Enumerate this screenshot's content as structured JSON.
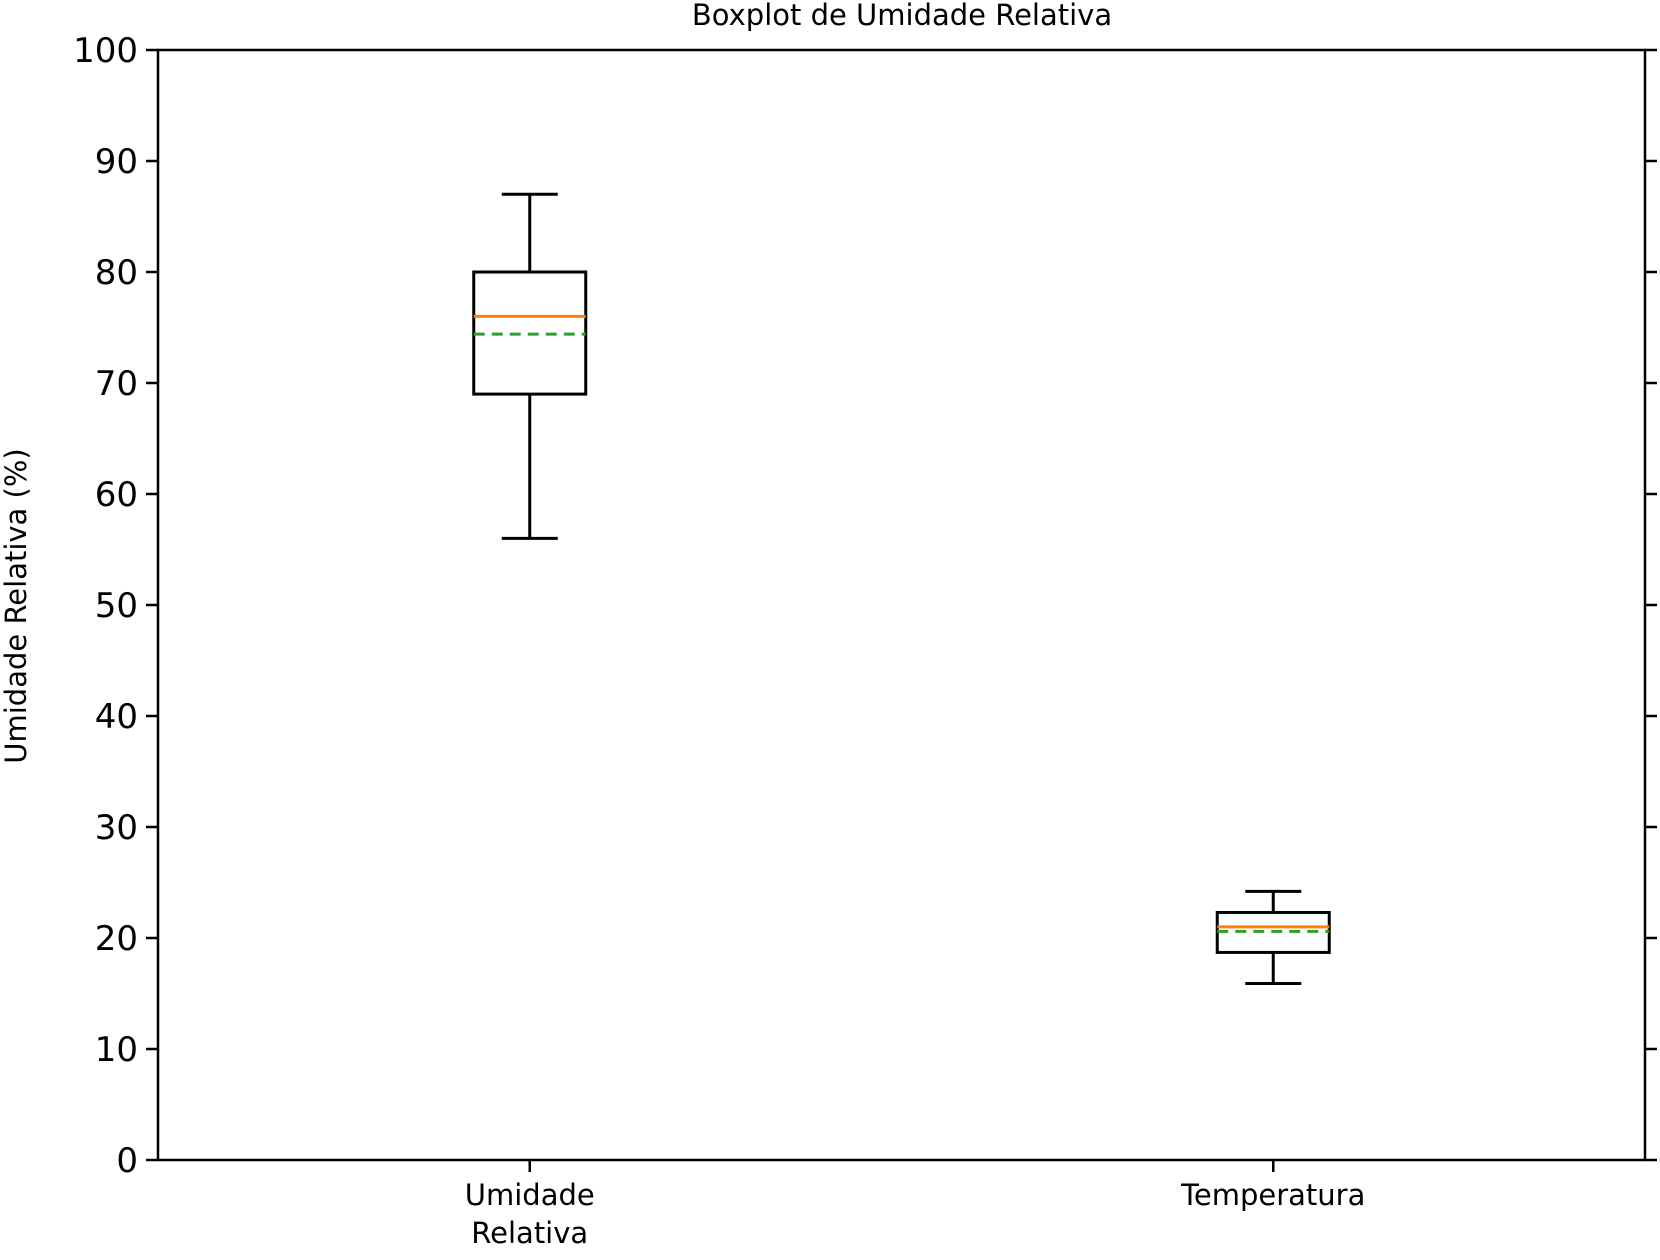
{
  "chart_data": {
    "type": "boxplot",
    "title": "Boxplot de Umidade Relativa",
    "xlabel": "",
    "ylabel": "Umidade Relativa (%)",
    "ylim": [
      0,
      100
    ],
    "yticks": [
      0,
      10,
      20,
      30,
      40,
      50,
      60,
      70,
      80,
      90,
      100
    ],
    "grid": false,
    "categories": [
      {
        "label_lines": [
          "Umidade",
          "Relativa"
        ]
      },
      {
        "label_lines": [
          "Temperatura"
        ]
      }
    ],
    "boxes": [
      {
        "whisker_low": 56,
        "q1": 69,
        "median": 76,
        "mean": 74.4,
        "q3": 80,
        "whisker_high": 87
      },
      {
        "whisker_low": 15.9,
        "q1": 18.7,
        "median": 21.0,
        "mean": 20.6,
        "q3": 22.3,
        "whisker_high": 24.2
      }
    ],
    "colors": {
      "median": "#ff7f0e",
      "mean": "#2ca02c",
      "box": "#000000"
    }
  }
}
